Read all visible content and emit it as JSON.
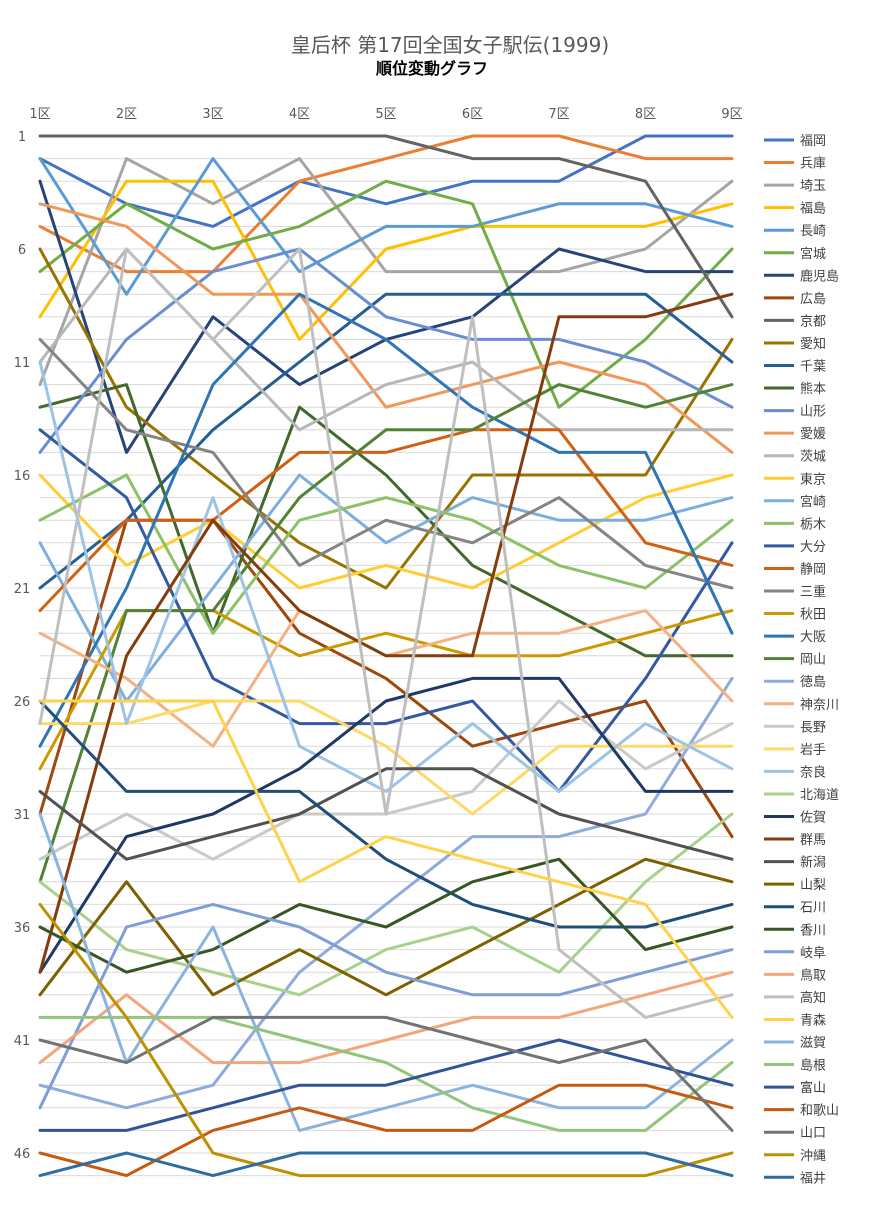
{
  "chart_data": {
    "type": "line",
    "title": "皇后杯 第17回全国女子駅伝(1999)",
    "subtitle": "順位変動グラフ",
    "categories": [
      "1区",
      "2区",
      "3区",
      "4区",
      "5区",
      "6区",
      "7区",
      "8区",
      "9区"
    ],
    "y_ticks": [
      "1",
      "6",
      "11",
      "16",
      "21",
      "26",
      "31",
      "36",
      "41",
      "46"
    ],
    "ylim": [
      1,
      47
    ],
    "y_inverted": true,
    "grid": true,
    "legend_position": "right",
    "series": [
      {
        "name": "福岡",
        "color": "#4472C4",
        "values": [
          2,
          4,
          5,
          3,
          4,
          3,
          3,
          1,
          1
        ]
      },
      {
        "name": "兵庫",
        "color": "#ED7D31",
        "values": [
          5,
          7,
          7,
          3,
          2,
          1,
          1,
          2,
          2
        ]
      },
      {
        "name": "埼玉",
        "color": "#A5A5A5",
        "values": [
          12,
          2,
          4,
          2,
          7,
          7,
          7,
          6,
          3
        ]
      },
      {
        "name": "福島",
        "color": "#FFC000",
        "values": [
          9,
          3,
          3,
          10,
          6,
          5,
          5,
          5,
          4
        ]
      },
      {
        "name": "長崎",
        "color": "#5B9BD5",
        "values": [
          2,
          8,
          2,
          7,
          5,
          5,
          4,
          4,
          5
        ]
      },
      {
        "name": "宮城",
        "color": "#70AD47",
        "values": [
          7,
          4,
          6,
          5,
          3,
          4,
          13,
          10,
          6
        ]
      },
      {
        "name": "鹿児島",
        "color": "#264478",
        "values": [
          3,
          15,
          9,
          12,
          10,
          9,
          6,
          7,
          7
        ]
      },
      {
        "name": "広島",
        "color": "#9E480E",
        "values": [
          31,
          18,
          18,
          23,
          25,
          28,
          27,
          26,
          32
        ]
      },
      {
        "name": "京都",
        "color": "#636363",
        "values": [
          1,
          1,
          1,
          1,
          1,
          2,
          2,
          3,
          9
        ]
      },
      {
        "name": "愛知",
        "color": "#997300",
        "values": [
          6,
          13,
          16,
          19,
          21,
          16,
          16,
          16,
          10
        ]
      },
      {
        "name": "千葉",
        "color": "#255E91",
        "values": [
          21,
          18,
          14,
          11,
          8,
          8,
          8,
          8,
          11
        ]
      },
      {
        "name": "熊本",
        "color": "#43682B",
        "values": [
          13,
          12,
          23,
          13,
          16,
          20,
          22,
          24,
          24
        ]
      },
      {
        "name": "山形",
        "color": "#698ED0",
        "values": [
          15,
          10,
          7,
          6,
          9,
          10,
          10,
          11,
          13
        ]
      },
      {
        "name": "愛媛",
        "color": "#F1975A",
        "values": [
          4,
          5,
          8,
          8,
          13,
          12,
          11,
          12,
          15
        ]
      },
      {
        "name": "茨城",
        "color": "#B7B7B7",
        "values": [
          11,
          6,
          10,
          14,
          12,
          11,
          14,
          14,
          14
        ]
      },
      {
        "name": "東京",
        "color": "#FFCD33",
        "values": [
          16,
          20,
          18,
          21,
          20,
          21,
          19,
          17,
          16
        ]
      },
      {
        "name": "宮崎",
        "color": "#7CAFDD",
        "values": [
          19,
          26,
          21,
          16,
          19,
          17,
          18,
          18,
          17
        ]
      },
      {
        "name": "栃木",
        "color": "#8CC168",
        "values": [
          18,
          16,
          23,
          18,
          17,
          18,
          20,
          21,
          18
        ]
      },
      {
        "name": "大分",
        "color": "#335AA1",
        "values": [
          14,
          17,
          25,
          27,
          27,
          26,
          30,
          25,
          19
        ]
      },
      {
        "name": "静岡",
        "color": "#D26012",
        "values": [
          22,
          18,
          18,
          15,
          15,
          14,
          14,
          19,
          20
        ]
      },
      {
        "name": "三重",
        "color": "#848484",
        "values": [
          10,
          14,
          15,
          20,
          18,
          19,
          17,
          20,
          21
        ]
      },
      {
        "name": "秋田",
        "color": "#CC9A00",
        "values": [
          29,
          22,
          22,
          24,
          23,
          24,
          24,
          23,
          22
        ]
      },
      {
        "name": "大阪",
        "color": "#2E75B6",
        "values": [
          28,
          21,
          12,
          8,
          10,
          13,
          15,
          15,
          23
        ]
      },
      {
        "name": "岡山",
        "color": "#548235",
        "values": [
          34,
          22,
          22,
          17,
          14,
          14,
          12,
          13,
          12
        ]
      },
      {
        "name": "徳島",
        "color": "#8FAADC",
        "values": [
          43,
          44,
          43,
          38,
          35,
          32,
          32,
          31,
          25
        ]
      },
      {
        "name": "神奈川",
        "color": "#F4B183",
        "values": [
          23,
          25,
          28,
          22,
          24,
          23,
          23,
          22,
          26
        ]
      },
      {
        "name": "長野",
        "color": "#C9C9C9",
        "values": [
          33,
          31,
          33,
          31,
          31,
          30,
          26,
          29,
          27
        ]
      },
      {
        "name": "岩手",
        "color": "#FFD966",
        "values": [
          27,
          27,
          26,
          26,
          28,
          31,
          28,
          28,
          28
        ]
      },
      {
        "name": "奈良",
        "color": "#9DC3E6",
        "values": [
          11,
          27,
          17,
          28,
          30,
          27,
          30,
          27,
          29
        ]
      },
      {
        "name": "北海道",
        "color": "#A9D18E",
        "values": [
          34,
          37,
          38,
          39,
          37,
          36,
          38,
          34,
          31
        ]
      },
      {
        "name": "佐賀",
        "color": "#203864",
        "values": [
          38,
          32,
          31,
          29,
          26,
          25,
          25,
          30,
          30
        ]
      },
      {
        "name": "群馬",
        "color": "#843C0C",
        "values": [
          38,
          24,
          18,
          22,
          24,
          24,
          9,
          9,
          8
        ]
      },
      {
        "name": "新潟",
        "color": "#525252",
        "values": [
          30,
          33,
          32,
          31,
          29,
          29,
          31,
          32,
          33
        ]
      },
      {
        "name": "山梨",
        "color": "#7F6000",
        "values": [
          39,
          34,
          39,
          37,
          39,
          37,
          35,
          33,
          34
        ]
      },
      {
        "name": "石川",
        "color": "#1F4E79",
        "values": [
          26,
          30,
          30,
          30,
          33,
          35,
          36,
          36,
          35
        ]
      },
      {
        "name": "香川",
        "color": "#375623",
        "values": [
          36,
          38,
          37,
          35,
          36,
          34,
          33,
          37,
          36
        ]
      },
      {
        "name": "岐阜",
        "color": "#7F9ED6",
        "values": [
          44,
          36,
          35,
          36,
          38,
          39,
          39,
          38,
          37
        ]
      },
      {
        "name": "鳥取",
        "color": "#F4A57A",
        "values": [
          42,
          39,
          42,
          42,
          41,
          40,
          40,
          39,
          38
        ]
      },
      {
        "name": "高知",
        "color": "#BFBFBF",
        "values": [
          27,
          6,
          10,
          6,
          31,
          9,
          37,
          40,
          39
        ]
      },
      {
        "name": "青森",
        "color": "#FFD24D",
        "values": [
          26,
          26,
          26,
          34,
          32,
          33,
          34,
          35,
          40
        ]
      },
      {
        "name": "滋賀",
        "color": "#8AB4E0",
        "values": [
          31,
          42,
          36,
          45,
          44,
          43,
          44,
          44,
          41
        ]
      },
      {
        "name": "島根",
        "color": "#93C47D",
        "values": [
          40,
          40,
          40,
          41,
          42,
          44,
          45,
          45,
          42
        ]
      },
      {
        "name": "富山",
        "color": "#2F5597",
        "values": [
          45,
          45,
          44,
          43,
          43,
          42,
          41,
          42,
          43
        ]
      },
      {
        "name": "和歌山",
        "color": "#C55A11",
        "values": [
          46,
          47,
          45,
          44,
          45,
          45,
          43,
          43,
          44
        ]
      },
      {
        "name": "山口",
        "color": "#737373",
        "values": [
          41,
          42,
          40,
          40,
          40,
          41,
          42,
          41,
          45
        ]
      },
      {
        "name": "沖縄",
        "color": "#BF9000",
        "values": [
          35,
          40,
          46,
          47,
          47,
          47,
          47,
          47,
          46
        ]
      },
      {
        "name": "福井",
        "color": "#2E6DA4",
        "values": [
          47,
          46,
          47,
          46,
          46,
          46,
          46,
          46,
          47
        ]
      }
    ]
  }
}
